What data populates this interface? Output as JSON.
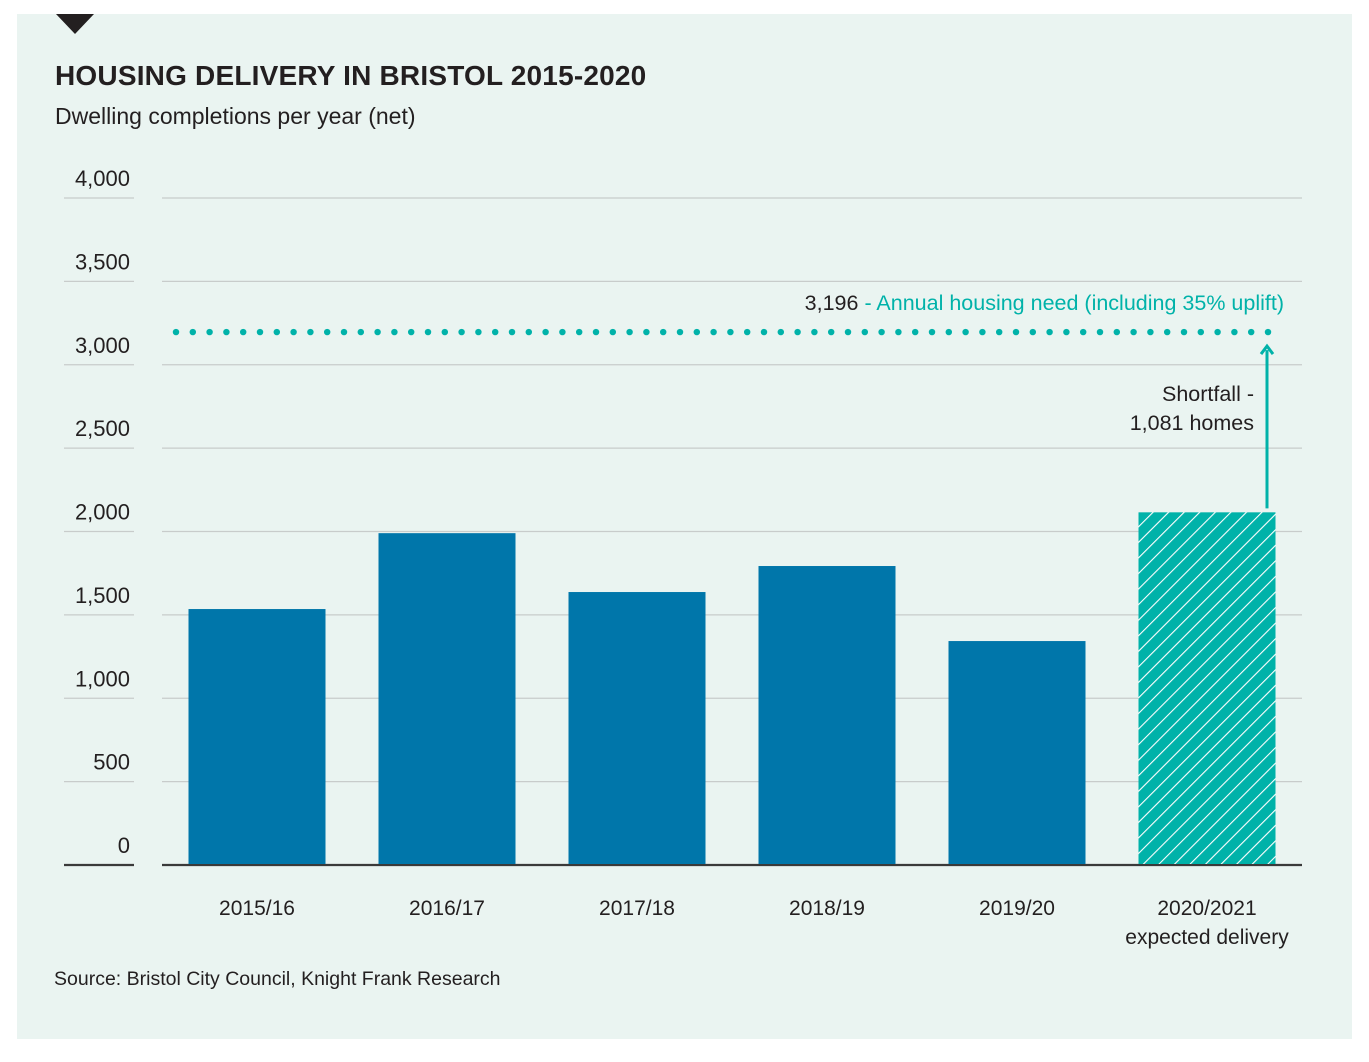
{
  "chart_data": {
    "type": "bar",
    "title": "HOUSING DELIVERY IN BRISTOL 2015-2020",
    "subtitle": "Dwelling completions per year (net)",
    "xlabel": "",
    "ylabel": "",
    "ylim": [
      0,
      4000
    ],
    "yticks": [
      0,
      500,
      1000,
      1500,
      2000,
      2500,
      3000,
      3500,
      4000
    ],
    "ytick_labels": [
      "0",
      "500",
      "1,000",
      "1,500",
      "2,000",
      "2,500",
      "3,000",
      "3,500",
      "4,000"
    ],
    "grid": true,
    "categories": [
      "2015/16",
      "2016/17",
      "2017/18",
      "2018/19",
      "2019/20",
      "2020/2021"
    ],
    "category_sublabels": [
      "",
      "",
      "",
      "",
      "",
      "expected delivery"
    ],
    "values": [
      1535,
      1990,
      1637,
      1793,
      1343,
      2115
    ],
    "bar_styles": [
      "solid",
      "solid",
      "solid",
      "solid",
      "solid",
      "hatched"
    ],
    "reference_line": {
      "value": 3196,
      "value_label": "3,196",
      "label": " - Annual housing need (including 35% uplift)",
      "style": "dotted"
    },
    "annotation": {
      "line1": "Shortfall -",
      "line2": "1,081 homes",
      "from_value": 2115,
      "to_value": 3196
    },
    "source": "Source: Bristol City Council, Knight Frank Research",
    "colors": {
      "bar": "#0076aa",
      "forecast": "#00b2a9",
      "reference": "#00b2a9",
      "text": "#231f20",
      "grid": "#c8cccb",
      "background": "#eaf4f1"
    }
  }
}
